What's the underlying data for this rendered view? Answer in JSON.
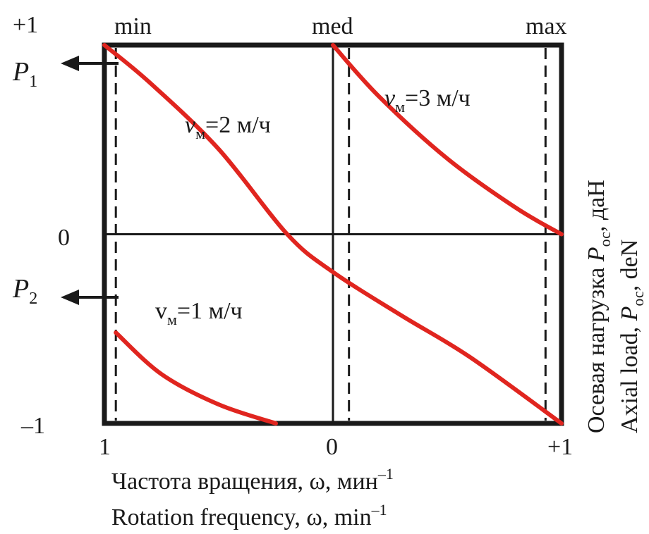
{
  "chart_data": {
    "type": "line",
    "x_scale_label_left": "1",
    "x_scale_label_center": "0",
    "x_scale_label_right": "+1",
    "y_scale_label_top": "+1",
    "y_scale_label_middle": "0",
    "y_scale_label_bottom": "–1",
    "top_labels": {
      "left": "min",
      "center": "med",
      "right": "max"
    },
    "xlim": [
      -1,
      1
    ],
    "ylim": [
      -1,
      1
    ],
    "grid": "cross at center",
    "xlabel_ru": {
      "base": "Частота вращения, ω, мин",
      "sup": "–1"
    },
    "xlabel_en": {
      "base": "Rotation frequency, ω, min",
      "sup": "–1"
    },
    "ylabel_ru": {
      "pre": "Осевая нагрузка ",
      "sym": "P",
      "sub": "ос",
      "post": ", даН"
    },
    "ylabel_en": {
      "pre": "Axial load, ",
      "sym": "P",
      "sub": "ос",
      "post": ", deN"
    },
    "p1": {
      "sym": "P",
      "sub": "1"
    },
    "p2": {
      "sym": "P",
      "sub": "2"
    },
    "dashed_lines_x": [
      -0.95,
      0.07,
      0.93
    ],
    "series": [
      {
        "label": {
          "sym": "v",
          "sub": "м",
          "post": "=1 м/ч"
        },
        "italic_sym": false,
        "color": "#e0251f",
        "points": [
          [
            -0.95,
            -0.52
          ],
          [
            -0.75,
            -0.74
          ],
          [
            -0.5,
            -0.9
          ],
          [
            -0.25,
            -1.0
          ]
        ]
      },
      {
        "label": {
          "sym": "v",
          "sub": "м",
          "post": "=2 м/ч"
        },
        "italic_sym": true,
        "color": "#e0251f",
        "points": [
          [
            -1.0,
            1.0
          ],
          [
            -0.8,
            0.8
          ],
          [
            -0.5,
            0.45
          ],
          [
            -0.2,
            0.0
          ],
          [
            0.0,
            -0.2
          ],
          [
            0.3,
            -0.43
          ],
          [
            0.6,
            -0.65
          ],
          [
            1.0,
            -1.0
          ]
        ]
      },
      {
        "label": {
          "sym": "v",
          "sub": "м",
          "post": "=3 м/ч"
        },
        "italic_sym": true,
        "color": "#e0251f",
        "points": [
          [
            0.0,
            1.0
          ],
          [
            0.2,
            0.73
          ],
          [
            0.5,
            0.4
          ],
          [
            0.8,
            0.14
          ],
          [
            1.0,
            0.0
          ]
        ]
      }
    ]
  }
}
